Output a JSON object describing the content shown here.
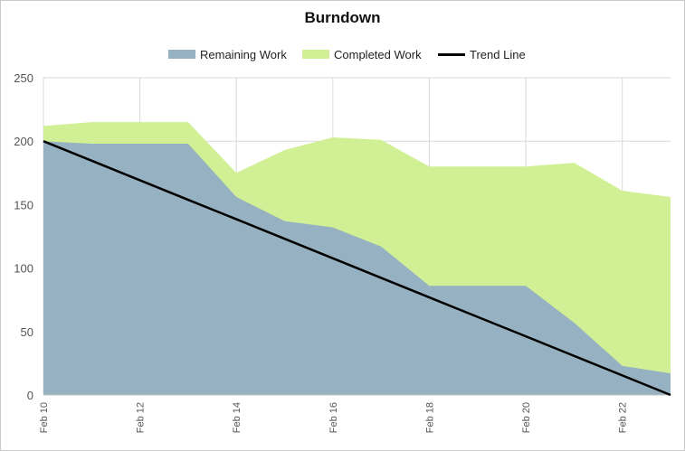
{
  "chart_data": {
    "type": "area",
    "title": "Burndown",
    "x": [
      "Feb 10",
      "Feb 11",
      "Feb 12",
      "Feb 13",
      "Feb 14",
      "Feb 15",
      "Feb 16",
      "Feb 17",
      "Feb 18",
      "Feb 19",
      "Feb 20",
      "Feb 21",
      "Feb 22",
      "Feb 23"
    ],
    "x_tick_labels": [
      "Feb 10",
      "Feb 12",
      "Feb 14",
      "Feb 16",
      "Feb 18",
      "Feb 20",
      "Feb 22"
    ],
    "series": [
      {
        "name": "Remaining Work",
        "kind": "area",
        "color": "#96b1c1",
        "values": [
          200,
          198,
          198,
          198,
          156,
          137,
          132,
          117,
          86,
          86,
          86,
          57,
          23,
          17
        ]
      },
      {
        "name": "Completed Work",
        "kind": "area-stacked-top",
        "color": "#d1f095",
        "values": [
          212,
          215,
          215,
          215,
          175,
          193,
          203,
          201,
          180,
          180,
          180,
          183,
          161,
          156
        ]
      },
      {
        "name": "Trend Line",
        "kind": "line",
        "color": "#000000",
        "values": [
          200,
          184.6,
          169.2,
          153.8,
          138.5,
          123.1,
          107.7,
          92.3,
          76.9,
          61.5,
          46.2,
          30.8,
          15.4,
          0
        ]
      }
    ],
    "ylim": [
      0,
      250
    ],
    "y_ticks": [
      0,
      50,
      100,
      150,
      200,
      250
    ],
    "grid": "vertical-and-horizontal",
    "legend_position": "top"
  }
}
